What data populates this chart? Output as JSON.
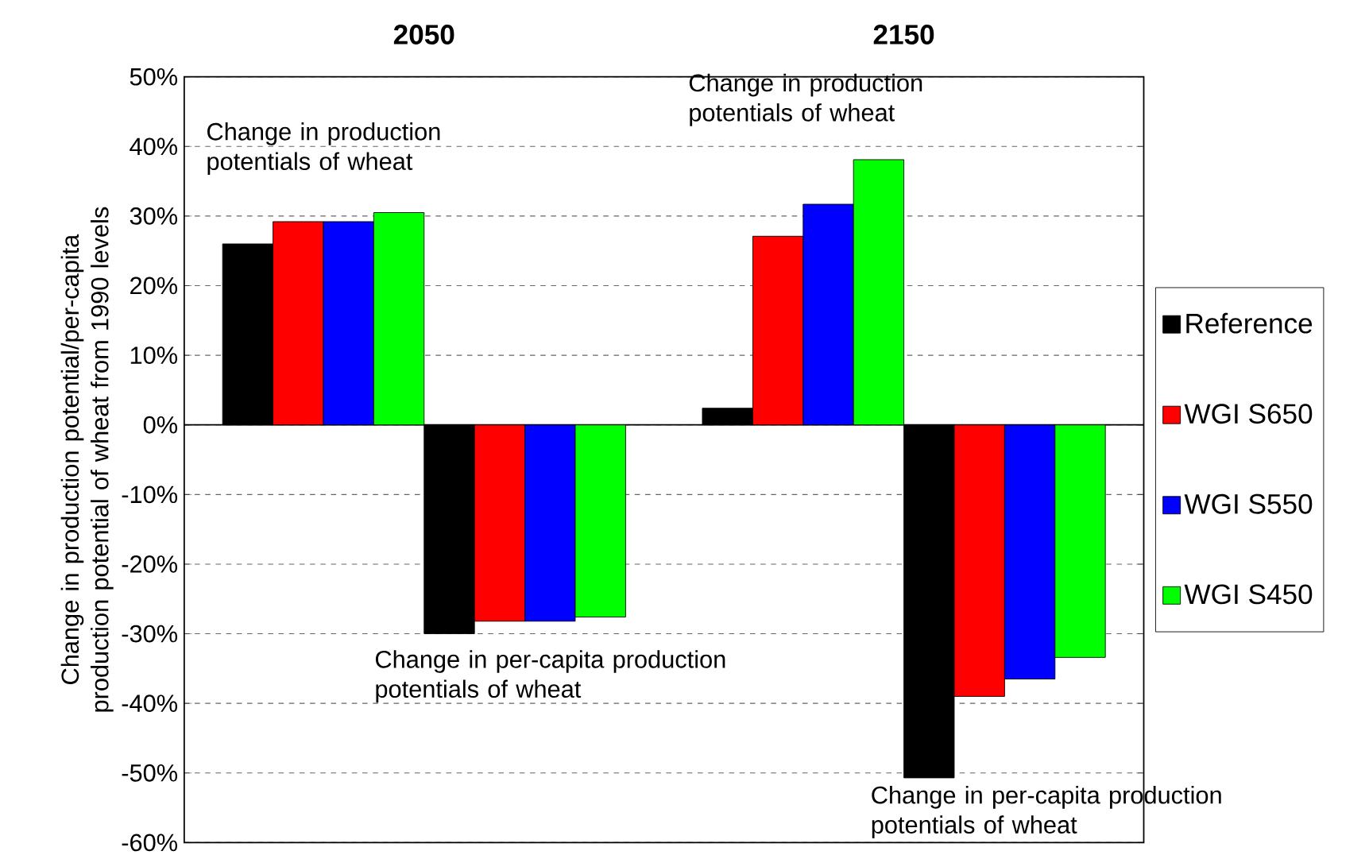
{
  "chart_data": {
    "type": "bar",
    "categories": [
      "2050",
      "2150"
    ],
    "ylabel": "Change in production potential/per-capita production potential of wheat from 1990 levels",
    "ylim": [
      -60,
      50
    ],
    "yticks": [
      {
        "value": -60,
        "label": "-60%"
      },
      {
        "value": -50,
        "label": "-50%"
      },
      {
        "value": -40,
        "label": "-40%"
      },
      {
        "value": -30,
        "label": "-30%"
      },
      {
        "value": -20,
        "label": "-20%"
      },
      {
        "value": -10,
        "label": "-10%"
      },
      {
        "value": 0,
        "label": "0%"
      },
      {
        "value": 10,
        "label": "10%"
      },
      {
        "value": 20,
        "label": "20%"
      },
      {
        "value": 30,
        "label": "30%"
      },
      {
        "value": 40,
        "label": "40%"
      },
      {
        "value": 50,
        "label": "50%"
      }
    ],
    "series": [
      {
        "name": "Reference",
        "color": "#000000",
        "values": [
          26,
          2.4
        ]
      },
      {
        "name": "WGI S650",
        "color": "#ff0000",
        "values": [
          29.2,
          27.1
        ]
      },
      {
        "name": "WGI S550",
        "color": "#0000ff",
        "values": [
          29.2,
          31.7
        ]
      },
      {
        "name": "WGI S450",
        "color": "#00ff00",
        "values": [
          30.5,
          38.1
        ]
      },
      {
        "color": "#000000",
        "values": [
          -30,
          -50.7
        ]
      },
      {
        "color": "#ff0000",
        "values": [
          -28.2,
          -39
        ]
      },
      {
        "color": "#0000ff",
        "values": [
          -28.2,
          -36.5
        ]
      },
      {
        "color": "#00ff00",
        "values": [
          -27.6,
          -33.4
        ]
      }
    ],
    "annotations": [
      "Change in production potentials of wheat",
      "Change in production potentials of wheat",
      "Change in per-capita production potentials of wheat",
      "Change in per-capita production potentials of wheat"
    ],
    "grid": "y",
    "legend": "right"
  }
}
